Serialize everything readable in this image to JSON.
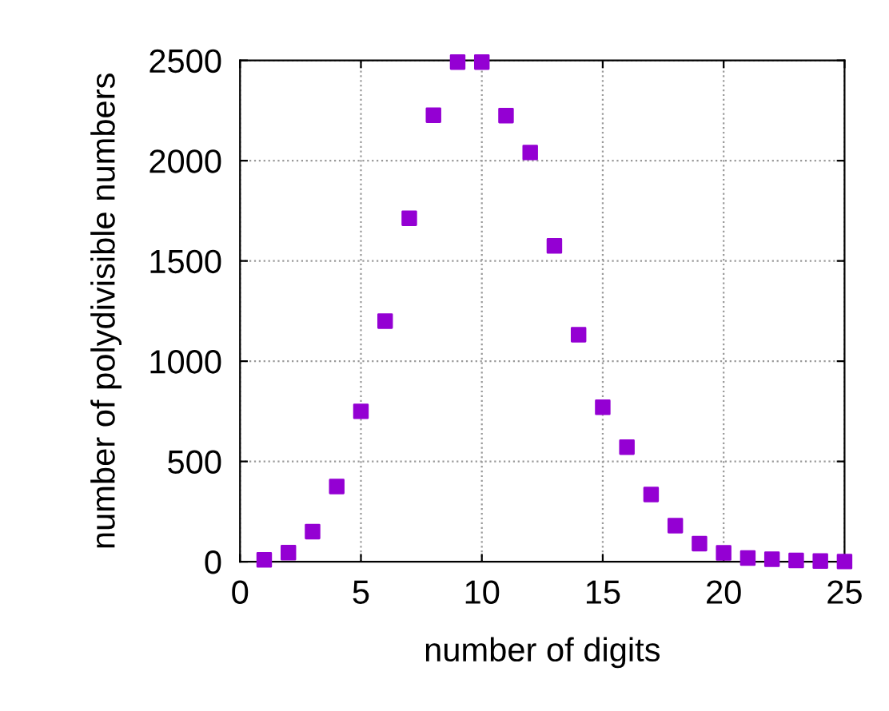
{
  "chart_data": {
    "type": "scatter",
    "xlabel": "number of digits",
    "ylabel": "number of polydivisible numbers",
    "x": [
      1,
      2,
      3,
      4,
      5,
      6,
      7,
      8,
      9,
      10,
      11,
      12,
      13,
      14,
      15,
      16,
      17,
      18,
      19,
      20,
      21,
      22,
      23,
      24,
      25
    ],
    "series": [
      {
        "color": "#9400d3",
        "values": [
          9,
          45,
          150,
          375,
          750,
          1200,
          1713,
          2227,
          2492,
          2492,
          2225,
          2041,
          1575,
          1132,
          770,
          571,
          335,
          180,
          90,
          44,
          18,
          12,
          6,
          3,
          1
        ]
      }
    ],
    "xlim": [
      0,
      25
    ],
    "xticks": [
      0,
      5,
      10,
      15,
      20,
      25
    ],
    "ylim": [
      0,
      2500
    ],
    "yticks": [
      0,
      500,
      1000,
      1500,
      2000,
      2500
    ],
    "grid": true,
    "marker": "square",
    "legend": false
  }
}
